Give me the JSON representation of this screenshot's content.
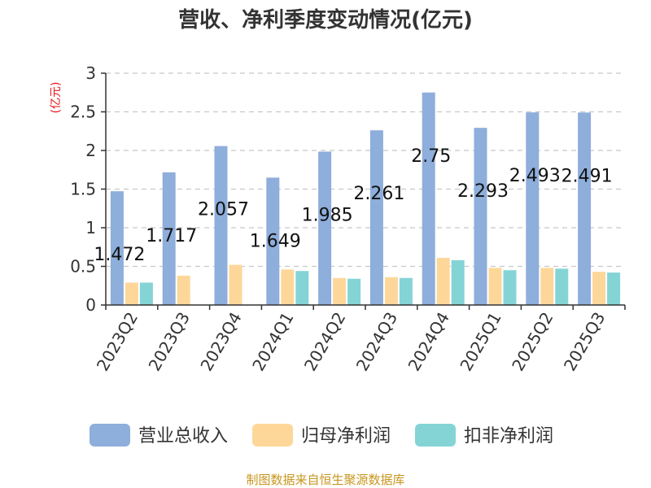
{
  "title": "营收、净利季度变动情况(亿元)",
  "footer": "制图数据来自恒生聚源数据库",
  "colors": {
    "revenue": "#8eaedb",
    "parent_profit": "#fdd79a",
    "deducted_profit": "#84d4d6"
  },
  "chart_data": {
    "type": "bar",
    "title": "营收、净利季度变动情况(亿元)",
    "ylabel": "(亿元)",
    "xlabel": "",
    "ylim": [
      0,
      3
    ],
    "yticks": [
      "0",
      "0.5",
      "1",
      "1.5",
      "2",
      "2.5",
      "3"
    ],
    "grid": true,
    "legend_position": "bottom",
    "categories": [
      "2023Q2",
      "2023Q3",
      "2023Q4",
      "2024Q1",
      "2024Q2",
      "2024Q3",
      "2024Q4",
      "2025Q1",
      "2025Q2",
      "2025Q3"
    ],
    "series": [
      {
        "name": "营业总收入",
        "values": [
          1.472,
          1.717,
          2.057,
          1.649,
          1.985,
          2.261,
          2.75,
          2.293,
          2.493,
          2.491
        ],
        "labels": [
          "1.472",
          "1.717",
          "2.057",
          "1.649",
          "1.985",
          "2.261",
          "2.75",
          "2.293",
          "2.493",
          "2.491"
        ]
      },
      {
        "name": "归母净利润",
        "values": [
          0.29,
          0.38,
          0.52,
          0.46,
          0.35,
          0.36,
          0.61,
          0.48,
          0.48,
          0.43
        ]
      },
      {
        "name": "扣非净利润",
        "values": [
          0.29,
          null,
          null,
          0.44,
          0.34,
          0.35,
          0.58,
          0.45,
          0.47,
          0.42
        ]
      }
    ]
  }
}
